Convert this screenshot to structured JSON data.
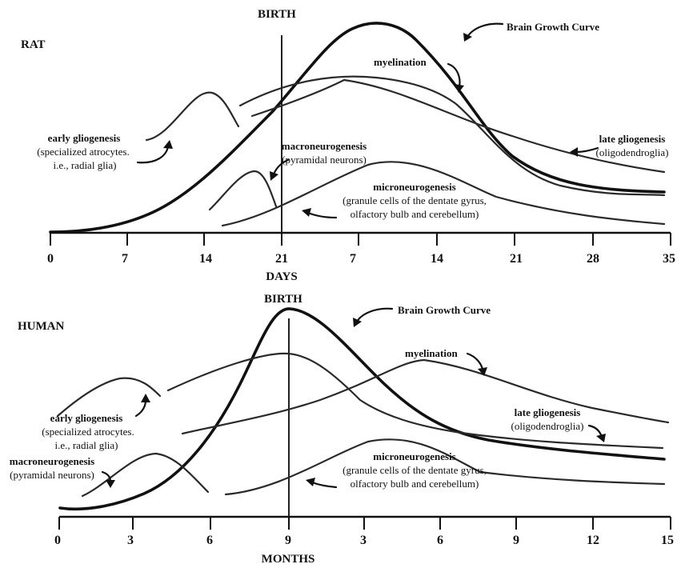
{
  "rat": {
    "species_label": "RAT",
    "birth_label": "BIRTH",
    "axis_title": "DAYS",
    "ticks": [
      "0",
      "7",
      "14",
      "21",
      "7",
      "14",
      "21",
      "28",
      "35"
    ],
    "labels": {
      "brain_growth_curve": "Brain Growth Curve",
      "myelination": "myelination",
      "late_gliogenesis": "late gliogenesis",
      "late_gliogenesis_sub": "(oligodendroglia)",
      "early_gliogenesis": "early gliogenesis",
      "early_gliogenesis_sub1": "(specialized atrocytes.",
      "early_gliogenesis_sub2": "i.e., radial glia)",
      "macroneurogenesis": "macroneurogenesis",
      "macroneurogenesis_sub": "(pyramidal neurons)",
      "microneurogenesis": "microneurogenesis",
      "microneurogenesis_sub1": "(granule cells of the dentate gyrus,",
      "microneurogenesis_sub2": "olfactory bulb and cerebellum)"
    }
  },
  "human": {
    "species_label": "HUMAN",
    "birth_label": "BIRTH",
    "axis_title": "MONTHS",
    "ticks": [
      "0",
      "3",
      "6",
      "9",
      "3",
      "6",
      "9",
      "12",
      "15"
    ],
    "labels": {
      "brain_growth_curve": "Brain Growth Curve",
      "myelination": "myelination",
      "late_gliogenesis": "late gliogenesis",
      "late_gliogenesis_sub": "(oligodendroglia)",
      "early_gliogenesis": "early gliogenesis",
      "early_gliogenesis_sub1": "(specialized atrocytes.",
      "early_gliogenesis_sub2": "i.e., radial glia)",
      "macroneurogenesis": "macroneurogenesis",
      "macroneurogenesis_sub": "(pyramidal neurons)",
      "microneurogenesis": "microneurogenesis",
      "microneurogenesis_sub1": "(granule cells of the dentate gyrus,",
      "microneurogenesis_sub2": "olfactory bulb and cerebellum)"
    }
  }
}
